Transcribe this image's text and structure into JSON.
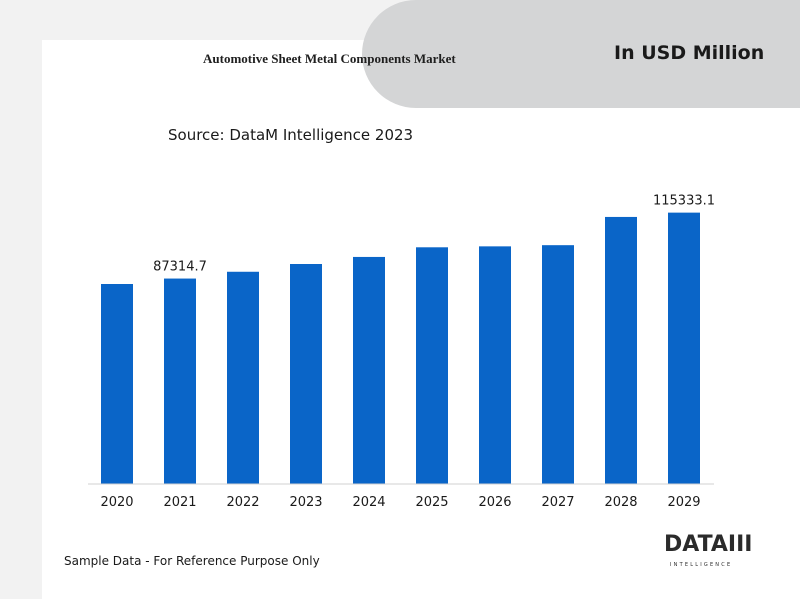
{
  "header": {
    "unit_label": "In USD Million"
  },
  "source_label": "Source: DataM Intelligence 2023",
  "footnote": "Sample Data - For Reference Purpose Only",
  "logo": {
    "text": "DATAIII",
    "subtext": "INTELLIGENCE"
  },
  "colors": {
    "bar": "#0a65c8",
    "background": "#f2f2f2",
    "card": "#ffffff",
    "pill": "#d4d5d6"
  },
  "chart_data": {
    "type": "bar",
    "title": "Automotive Sheet Metal Components Market",
    "xlabel": "",
    "ylabel": "",
    "categories": [
      "2020",
      "2021",
      "2022",
      "2023",
      "2024",
      "2025",
      "2026",
      "2027",
      "2028",
      "2029"
    ],
    "values": [
      85000,
      87314.7,
      90200,
      93500,
      96500,
      100600,
      101000,
      101500,
      113500,
      115333.1
    ],
    "data_labels": {
      "1": "87314.7",
      "9": "115333.1"
    },
    "ylim": [
      0,
      136000
    ],
    "grid": false,
    "legend": "none"
  }
}
